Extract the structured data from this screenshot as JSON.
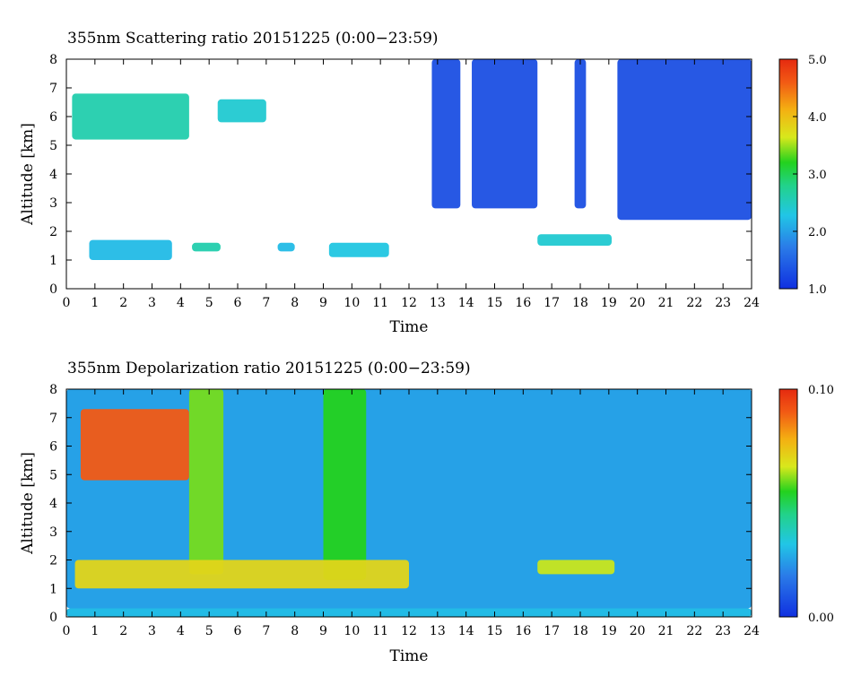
{
  "chart_data": [
    {
      "type": "heatmap",
      "title": "355nm Scattering ratio  20151225 (0:00−23:59)",
      "xlabel": "Time",
      "ylabel": "Altitude [km]",
      "xlim": [
        0,
        24
      ],
      "ylim": [
        0,
        8
      ],
      "x_ticks": [
        "0",
        "1",
        "2",
        "3",
        "4",
        "5",
        "6",
        "7",
        "8",
        "9",
        "10",
        "11",
        "12",
        "13",
        "14",
        "15",
        "16",
        "17",
        "18",
        "19",
        "20",
        "21",
        "22",
        "23",
        "24"
      ],
      "y_ticks": [
        "0",
        "1",
        "2",
        "3",
        "4",
        "5",
        "6",
        "7",
        "8"
      ],
      "colorbar": {
        "min": 1.0,
        "max": 5.0,
        "tick_labels": [
          "5.0",
          "4.0",
          "3.0",
          "2.0",
          "1.0"
        ],
        "tick_values": [
          5.0,
          4.0,
          3.0,
          2.0,
          1.0
        ]
      },
      "features": [
        {
          "x_start": 0.2,
          "x_end": 4.3,
          "alt_bottom": 5.2,
          "alt_top": 6.8,
          "value": 2.6
        },
        {
          "x_start": 5.3,
          "x_end": 7.0,
          "alt_bottom": 5.8,
          "alt_top": 6.6,
          "value": 2.4
        },
        {
          "x_start": 0.8,
          "x_end": 3.7,
          "alt_bottom": 1.0,
          "alt_top": 1.7,
          "value": 2.2
        },
        {
          "x_start": 4.4,
          "x_end": 5.4,
          "alt_bottom": 1.3,
          "alt_top": 1.6,
          "value": 2.6
        },
        {
          "x_start": 7.4,
          "x_end": 8.0,
          "alt_bottom": 1.3,
          "alt_top": 1.6,
          "value": 2.2
        },
        {
          "x_start": 9.2,
          "x_end": 11.3,
          "alt_bottom": 1.1,
          "alt_top": 1.6,
          "value": 2.3
        },
        {
          "x_start": 16.5,
          "x_end": 19.1,
          "alt_bottom": 1.5,
          "alt_top": 1.9,
          "value": 2.4
        },
        {
          "x_start": 12.8,
          "x_end": 13.8,
          "alt_bottom": 2.8,
          "alt_top": 8.0,
          "value": 1.3
        },
        {
          "x_start": 14.2,
          "x_end": 16.5,
          "alt_bottom": 2.8,
          "alt_top": 8.0,
          "value": 1.3
        },
        {
          "x_start": 17.8,
          "x_end": 18.2,
          "alt_bottom": 2.8,
          "alt_top": 8.0,
          "value": 1.3
        },
        {
          "x_start": 19.3,
          "x_end": 24.0,
          "alt_bottom": 2.4,
          "alt_top": 8.0,
          "value": 1.3
        }
      ]
    },
    {
      "type": "heatmap",
      "title": "355nm Depolarization ratio  20151225 (0:00−23:59)",
      "xlabel": "Time",
      "ylabel": "Altitude [km]",
      "xlim": [
        0,
        24
      ],
      "ylim": [
        0,
        8
      ],
      "x_ticks": [
        "0",
        "1",
        "2",
        "3",
        "4",
        "5",
        "6",
        "7",
        "8",
        "9",
        "10",
        "11",
        "12",
        "13",
        "14",
        "15",
        "16",
        "17",
        "18",
        "19",
        "20",
        "21",
        "22",
        "23",
        "24"
      ],
      "y_ticks": [
        "0",
        "1",
        "2",
        "3",
        "4",
        "5",
        "6",
        "7",
        "8"
      ],
      "colorbar": {
        "min": 0.0,
        "max": 0.1,
        "tick_labels": [
          "0.10",
          "0.00"
        ],
        "tick_values": [
          0.1,
          0.0
        ]
      },
      "features": [
        {
          "x_start": 0.5,
          "x_end": 4.3,
          "alt_bottom": 4.8,
          "alt_top": 7.3,
          "value": 0.09
        },
        {
          "x_start": 4.3,
          "x_end": 5.5,
          "alt_bottom": 1.5,
          "alt_top": 8.0,
          "value": 0.06
        },
        {
          "x_start": 9.0,
          "x_end": 10.5,
          "alt_bottom": 1.3,
          "alt_top": 8.0,
          "value": 0.055
        },
        {
          "x_start": 0.3,
          "x_end": 12.0,
          "alt_bottom": 1.0,
          "alt_top": 2.0,
          "value": 0.07
        },
        {
          "x_start": 16.5,
          "x_end": 19.2,
          "alt_bottom": 1.5,
          "alt_top": 2.0,
          "value": 0.065
        },
        {
          "x_start": 0.0,
          "x_end": 24.0,
          "alt_bottom": 0.0,
          "alt_top": 0.3,
          "value": 0.03
        },
        {
          "x_start": 0.0,
          "x_end": 24.0,
          "alt_bottom": 0.3,
          "alt_top": 8.0,
          "value": 0.025
        }
      ]
    }
  ]
}
